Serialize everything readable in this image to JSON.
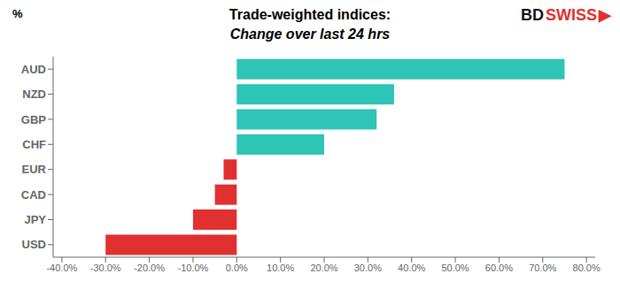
{
  "chart_data": {
    "type": "bar",
    "orientation": "horizontal",
    "title": "Trade-weighted indices:",
    "subtitle": "Change over last 24 hrs",
    "ylabel": "%",
    "annotations": [
      {
        "text": "BD",
        "color": "#111111"
      },
      {
        "text": "SWISS",
        "color": "#e03030"
      },
      {
        "text": "▶",
        "color": "#e03030"
      }
    ],
    "categories": [
      "USD",
      "JPY",
      "CAD",
      "EUR",
      "CHF",
      "GBP",
      "NZD",
      "AUD"
    ],
    "values": [
      -0.3,
      -0.1,
      -0.05,
      -0.03,
      0.2,
      0.32,
      0.36,
      0.75
    ],
    "colors": [
      "#e03030",
      "#e03030",
      "#e03030",
      "#e03030",
      "#2ec4b6",
      "#2ec4b6",
      "#2ec4b6",
      "#2ec4b6"
    ],
    "xlim": [
      -0.42,
      0.82
    ],
    "xticks": [
      {
        "value": -0.4,
        "label": "-40.0%"
      },
      {
        "value": -0.3,
        "label": "-30.0%"
      },
      {
        "value": -0.2,
        "label": "-20.0%"
      },
      {
        "value": -0.1,
        "label": "-10.0%"
      },
      {
        "value": 0.0,
        "label": "0.0%"
      },
      {
        "value": 0.1,
        "label": "10.0%"
      },
      {
        "value": 0.2,
        "label": "20.0%"
      },
      {
        "value": 0.3,
        "label": "30.0%"
      },
      {
        "value": 0.4,
        "label": "40.0%"
      },
      {
        "value": 0.5,
        "label": "50.0%"
      },
      {
        "value": 0.6,
        "label": "60.0%"
      },
      {
        "value": 0.7,
        "label": "70.0%"
      },
      {
        "value": 0.8,
        "label": "80.0%"
      }
    ],
    "grid": false
  }
}
